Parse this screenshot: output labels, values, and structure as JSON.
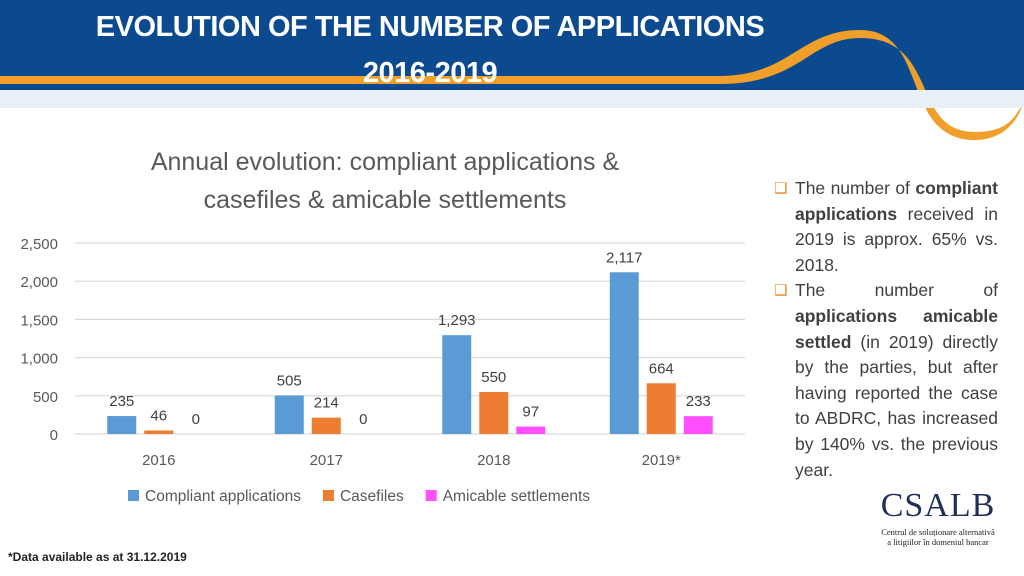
{
  "header": {
    "title_line1": "EVOLUTION OF THE NUMBER OF APPLICATIONS",
    "title_line2": "2016-2019",
    "bg_color": "#0b4a8f",
    "accent_color": "#f0a02a"
  },
  "chart_data": {
    "type": "bar",
    "title_line1": "Annual evolution: compliant applications &",
    "title_line2": "casefiles & amicable settlements",
    "categories": [
      "2016",
      "2017",
      "2018",
      "2019*"
    ],
    "series": [
      {
        "name": "Compliant applications",
        "color": "#5b9bd5",
        "values": [
          235,
          505,
          1293,
          2117
        ],
        "labels": [
          "235",
          "505",
          "1,293",
          "2,117"
        ]
      },
      {
        "name": "Casefiles",
        "color": "#ed7d31",
        "values": [
          46,
          214,
          550,
          664
        ],
        "labels": [
          "46",
          "214",
          "550",
          "664"
        ]
      },
      {
        "name": "Amicable settlements",
        "color": "#ff4fff",
        "values": [
          0,
          0,
          97,
          233
        ],
        "labels": [
          "0",
          "0",
          "97",
          "233"
        ]
      }
    ],
    "y_ticks": [
      {
        "value": 0,
        "label": "0"
      },
      {
        "value": 500,
        "label": "500"
      },
      {
        "value": 1000,
        "label": "1,000"
      },
      {
        "value": 1500,
        "label": "1,500"
      },
      {
        "value": 2000,
        "label": "2,000"
      },
      {
        "value": 2500,
        "label": "2,500"
      }
    ],
    "ylim": [
      0,
      2500
    ],
    "xlabel": "",
    "ylabel": "",
    "grid": true,
    "legend_position": "bottom"
  },
  "notes": {
    "bullet1": {
      "pre": "The number of",
      "bold": "compliant applications",
      "post": "received in 2019 is approx. 65% vs. 2018."
    },
    "bullet2": {
      "pre": "The number of",
      "bold": "applications amicable settled",
      "post": "(in 2019) directly by the parties, but after having reported the case to ABDRC, has increased by 140% vs. the previous year."
    }
  },
  "footnote": "*Data available as at 31.12.2019",
  "logo": {
    "name": "CSALB",
    "subtitle_line1": "Centrul de soluționare alternativă",
    "subtitle_line2": "a litigiilor în domeniul bancar"
  }
}
